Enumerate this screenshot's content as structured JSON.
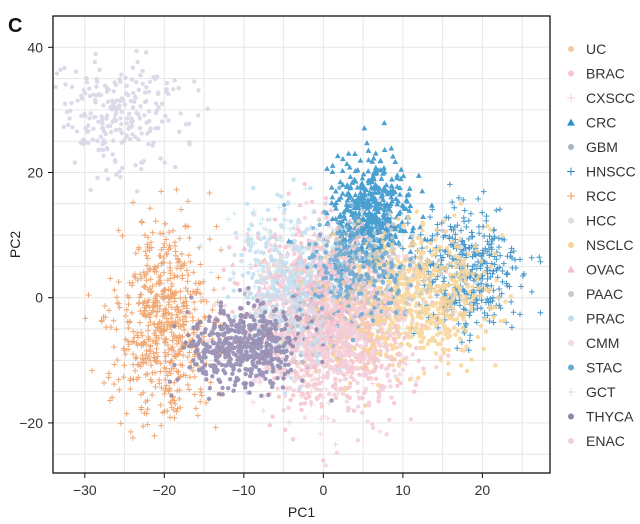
{
  "panel_label": "C",
  "chart_data": {
    "type": "scatter",
    "xlabel": "PC1",
    "ylabel": "PC2",
    "xlim": [
      -34,
      28.5
    ],
    "ylim": [
      -28,
      45
    ],
    "xticks": [
      -30,
      -20,
      -10,
      0,
      10,
      20
    ],
    "yticks": [
      -20,
      0,
      20,
      40
    ],
    "grid": true,
    "legend_position": "right",
    "series": [
      {
        "name": "UC",
        "marker": "circle",
        "color": "#f5c9a2",
        "cx": 2,
        "cy": -4,
        "sx": 4,
        "sy": 5,
        "n": 160
      },
      {
        "name": "BRAC",
        "marker": "circle",
        "color": "#f7c3cc",
        "cx": 1,
        "cy": -3,
        "sx": 5,
        "sy": 7,
        "n": 700
      },
      {
        "name": "CXSCC",
        "marker": "plus",
        "color": "#f3cfd6",
        "cx": 0,
        "cy": -10,
        "sx": 4,
        "sy": 5,
        "n": 140
      },
      {
        "name": "CRC",
        "marker": "triangle",
        "color": "#2b90c8",
        "cx": 6,
        "cy": 13,
        "sx": 2.5,
        "sy": 4.5,
        "n": 520
      },
      {
        "name": "GBM",
        "marker": "circle",
        "color": "#a9b6c2",
        "cx": -2,
        "cy": -2,
        "sx": 3,
        "sy": 4,
        "n": 90
      },
      {
        "name": "HNSCC",
        "marker": "plus",
        "color": "#2a86c2",
        "cx": 18,
        "cy": 4,
        "sx": 3.5,
        "sy": 5.5,
        "n": 380
      },
      {
        "name": "RCC",
        "marker": "plus",
        "color": "#ee9a5e",
        "cx": -20,
        "cy": -4,
        "sx": 3,
        "sy": 7.5,
        "n": 620
      },
      {
        "name": "HCC",
        "marker": "circle",
        "color": "#dcdcdc",
        "cx": -5,
        "cy": 5,
        "sx": 3,
        "sy": 4,
        "n": 100
      },
      {
        "name": "NSCLC",
        "marker": "circle",
        "color": "#f8d496",
        "cx": 11,
        "cy": 0,
        "sx": 5,
        "sy": 5,
        "n": 720
      },
      {
        "name": "OVAC",
        "marker": "triangle",
        "color": "#f6bfcf",
        "cx": 0,
        "cy": 1,
        "sx": 4,
        "sy": 5,
        "n": 260
      },
      {
        "name": "PAAC",
        "marker": "circle",
        "color": "#c9c9c9",
        "cx": 6,
        "cy": 4,
        "sx": 4,
        "sy": 4,
        "n": 140
      },
      {
        "name": "PRAC",
        "marker": "circle",
        "color": "#bfe0f2",
        "cx": -5,
        "cy": 1,
        "sx": 3,
        "sy": 6,
        "n": 300
      },
      {
        "name": "CMM",
        "marker": "circle",
        "color": "#f1d8e4",
        "cx": -2,
        "cy": -3,
        "sx": 6,
        "sy": 7,
        "n": 220
      },
      {
        "name": "STAC",
        "marker": "circle",
        "color": "#68a9d4",
        "cx": 4,
        "cy": 5,
        "sx": 3,
        "sy": 4,
        "n": 220
      },
      {
        "name": "GCT",
        "marker": "plus",
        "color": "#cbe6ef",
        "cx": -4,
        "cy": 5,
        "sx": 4,
        "sy": 5,
        "n": 90
      },
      {
        "name": "THYCA",
        "marker": "circle",
        "color": "#8e86ad",
        "cx": -10,
        "cy": -8,
        "sx": 3.5,
        "sy": 3.2,
        "n": 520
      },
      {
        "name": "ENAC",
        "marker": "circle",
        "color": "#f3ced9",
        "cx": 3,
        "cy": -7,
        "sx": 4,
        "sy": 6,
        "n": 260
      },
      {
        "name": "",
        "marker": "circle",
        "color": "#d8d3e6",
        "cx": -26,
        "cy": 29,
        "sx": 4,
        "sy": 4.5,
        "n": 240,
        "legend": false
      }
    ]
  }
}
